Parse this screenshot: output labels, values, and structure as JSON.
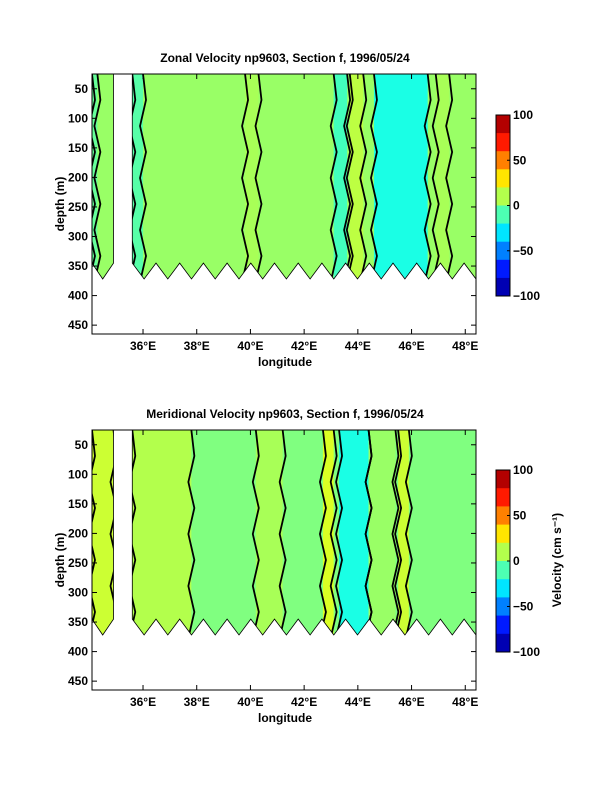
{
  "chart_data": [
    {
      "type": "heatmap",
      "title": "Zonal Velocity np9603, Section f, 1996/05/24",
      "xlabel": "longitude",
      "ylabel": "depth (m)",
      "x_ticks": [
        "36°E",
        "38°E",
        "40°E",
        "42°E",
        "44°E",
        "46°E",
        "48°E"
      ],
      "x_tick_values": [
        36,
        38,
        40,
        42,
        44,
        46,
        48
      ],
      "y_ticks": [
        50,
        100,
        150,
        200,
        250,
        300,
        350,
        400,
        450
      ],
      "xlim": [
        34.1,
        48.4
      ],
      "ylim": [
        25,
        465
      ],
      "y_reversed": true,
      "data_gap": [
        34.9,
        35.6
      ],
      "bottom_depth_range": [
        330,
        380
      ],
      "colorbar": {
        "label": "",
        "ticks": [
          100,
          50,
          0,
          -50,
          -100
        ],
        "range": [
          -100,
          100
        ]
      },
      "bands": [
        {
          "x0": 34.1,
          "x1": 48.4,
          "value": 5
        },
        {
          "x0": 34.1,
          "x1": 34.3,
          "value": -5
        },
        {
          "x0": 35.6,
          "x1": 36.0,
          "value": -8
        },
        {
          "x0": 39.8,
          "x1": 40.3,
          "value": 8
        },
        {
          "x0": 43.1,
          "x1": 43.6,
          "value": -12
        },
        {
          "x0": 43.7,
          "x1": 44.2,
          "value": 12
        },
        {
          "x0": 44.6,
          "x1": 46.6,
          "value": -20
        },
        {
          "x0": 46.9,
          "x1": 47.4,
          "value": 8
        }
      ]
    },
    {
      "type": "heatmap",
      "title": "Meridional Velocity np9603, Section f, 1996/05/24",
      "xlabel": "longitude",
      "ylabel": "depth (m)",
      "x_ticks": [
        "36°E",
        "38°E",
        "40°E",
        "42°E",
        "44°E",
        "46°E",
        "48°E"
      ],
      "x_tick_values": [
        36,
        38,
        40,
        42,
        44,
        46,
        48
      ],
      "y_ticks": [
        50,
        100,
        150,
        200,
        250,
        300,
        350,
        400,
        450
      ],
      "xlim": [
        34.1,
        48.4
      ],
      "ylim": [
        25,
        465
      ],
      "y_reversed": true,
      "data_gap": [
        34.9,
        35.6
      ],
      "bottom_depth_range": [
        330,
        380
      ],
      "colorbar": {
        "label": "Velocity (cm s⁻¹)",
        "ticks": [
          100,
          50,
          0,
          -50,
          -100
        ],
        "range": [
          -100,
          100
        ]
      },
      "bands": [
        {
          "x0": 34.1,
          "x1": 48.4,
          "value": 0
        },
        {
          "x0": 34.1,
          "x1": 34.9,
          "value": 15
        },
        {
          "x0": 35.6,
          "x1": 37.8,
          "value": 10
        },
        {
          "x0": 40.2,
          "x1": 41.2,
          "value": 8
        },
        {
          "x0": 42.7,
          "x1": 43.1,
          "value": 18
        },
        {
          "x0": 43.3,
          "x1": 44.4,
          "value": -20
        },
        {
          "x0": 44.4,
          "x1": 45.4,
          "value": 5
        },
        {
          "x0": 45.5,
          "x1": 45.9,
          "value": 15
        }
      ]
    }
  ]
}
